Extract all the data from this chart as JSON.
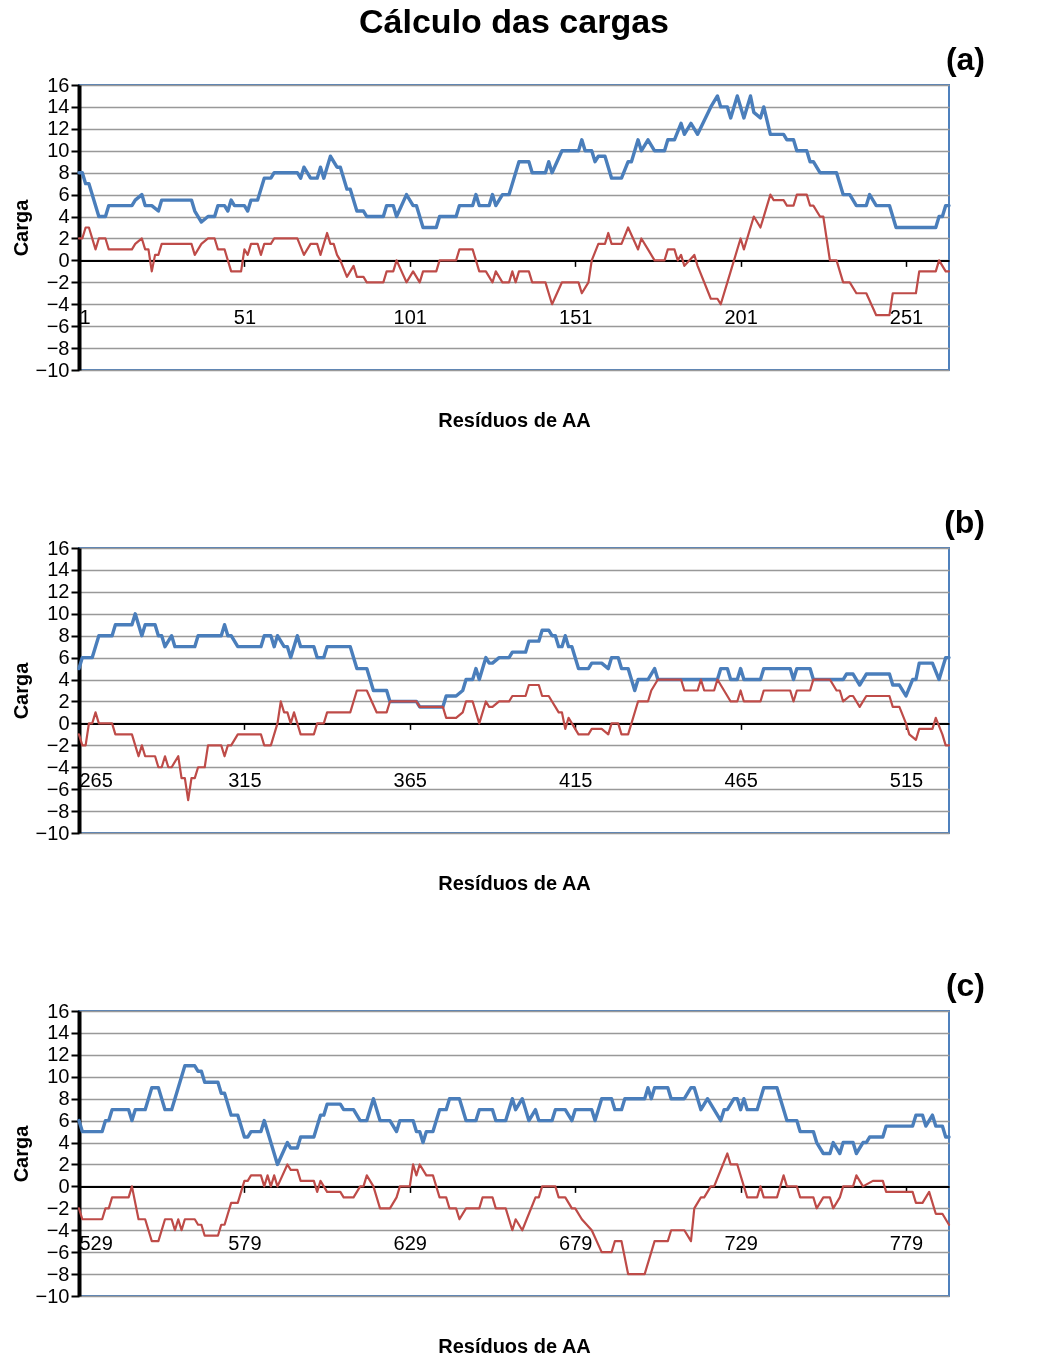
{
  "chart_data": [
    {
      "type": "line",
      "title": "Cálculo das cargas",
      "xlabel": "Resíduos de AA",
      "ylabel": "Carga",
      "annotations": [
        "(a)"
      ],
      "xlim": [
        1,
        264
      ],
      "xticks": [
        1,
        51,
        101,
        151,
        201,
        251
      ],
      "ylim": [
        -10,
        16
      ],
      "yticks": [
        -10,
        -8,
        -6,
        -4,
        -2,
        0,
        2,
        4,
        6,
        8,
        10,
        12,
        14,
        16
      ],
      "grid": "y",
      "series": [
        {
          "color": "#4a7ebb",
          "x": [
            1,
            2,
            3,
            4,
            7,
            9,
            10,
            17,
            18,
            20,
            21,
            23,
            25,
            26,
            35,
            36,
            38,
            40,
            42,
            43,
            45,
            46,
            47,
            48,
            51,
            52,
            53,
            55,
            57,
            59,
            60,
            67,
            68,
            69,
            71,
            73,
            74,
            75,
            77,
            79,
            80,
            82,
            83,
            85,
            87,
            88,
            93,
            94,
            96,
            97,
            100,
            102,
            103,
            105,
            109,
            110,
            115,
            116,
            120,
            121,
            122,
            125,
            126,
            127,
            129,
            131,
            134,
            137,
            138,
            142,
            143,
            144,
            147,
            152,
            153,
            154,
            156,
            157,
            158,
            160,
            162,
            165,
            167,
            168,
            170,
            171,
            173,
            175,
            178,
            179,
            181,
            183,
            184,
            186,
            188,
            192,
            194,
            195,
            197,
            198,
            200,
            202,
            204,
            205,
            207,
            208,
            210,
            214,
            215,
            217,
            218,
            221,
            222,
            223,
            225,
            230,
            232,
            234,
            236,
            239,
            240,
            242,
            246,
            248,
            260,
            261,
            262,
            263,
            264
          ],
          "values": [
            8,
            8,
            7,
            7,
            4,
            4,
            5,
            5,
            5.5,
            6,
            5,
            5,
            4.5,
            5.5,
            5.5,
            4.5,
            3.5,
            4,
            4,
            5,
            5,
            4.5,
            5.5,
            5,
            5,
            4.5,
            5.5,
            5.5,
            7.5,
            7.5,
            8,
            8,
            7.5,
            8.5,
            7.5,
            7.5,
            8.5,
            7.5,
            9.5,
            8.5,
            8.5,
            6.5,
            6.5,
            4.5,
            4.5,
            4,
            4,
            5,
            5,
            4,
            6,
            5,
            5,
            3,
            3,
            4,
            4,
            5,
            5,
            6,
            5,
            5,
            6,
            5,
            6,
            6,
            9,
            9,
            8,
            8,
            9,
            8,
            10,
            10,
            11,
            10,
            10,
            9,
            9.5,
            9.5,
            7.5,
            7.5,
            9,
            9,
            11,
            10,
            11,
            10,
            10,
            11,
            11,
            12.5,
            11.5,
            12.5,
            11.5,
            14,
            15,
            14,
            14,
            13,
            15,
            13,
            15,
            13.5,
            13,
            14,
            11.5,
            11.5,
            11,
            11,
            10,
            10,
            9,
            9,
            8,
            8,
            6,
            6,
            5,
            5,
            6,
            5,
            5,
            3,
            3,
            4,
            4,
            5,
            5
          ]
        },
        {
          "color": "#be4b48",
          "x": [
            1,
            2,
            3,
            4,
            6,
            7,
            9,
            10,
            17,
            18,
            20,
            21,
            22,
            23,
            24,
            25,
            26,
            35,
            36,
            38,
            40,
            42,
            43,
            45,
            47,
            50,
            51,
            52,
            53,
            55,
            56,
            57,
            59,
            60,
            67,
            69,
            71,
            73,
            74,
            76,
            77,
            78,
            79,
            80,
            82,
            84,
            85,
            87,
            88,
            93,
            94,
            96,
            97,
            100,
            102,
            104,
            105,
            109,
            110,
            115,
            116,
            120,
            122,
            124,
            126,
            127,
            129,
            131,
            132,
            133,
            134,
            137,
            138,
            142,
            144,
            147,
            152,
            153,
            155,
            156,
            158,
            160,
            161,
            162,
            165,
            167,
            170,
            171,
            173,
            175,
            178,
            179,
            181,
            182,
            183,
            184,
            187,
            188,
            192,
            194,
            195,
            197,
            201,
            202,
            205,
            207,
            210,
            211,
            214,
            215,
            217,
            218,
            221,
            222,
            223,
            225,
            226,
            228,
            230,
            232,
            234,
            236,
            239,
            242,
            246,
            247,
            250,
            254,
            255,
            260,
            261,
            263,
            264
          ],
          "values": [
            2,
            2,
            3,
            3,
            1,
            2,
            2,
            1,
            1,
            1.5,
            2,
            1,
            1,
            -1,
            0.5,
            0.5,
            1.5,
            1.5,
            0.5,
            1.5,
            2,
            2,
            1,
            1,
            -1,
            -1,
            1,
            0.5,
            1.5,
            1.5,
            0.5,
            1.5,
            1.5,
            2,
            2,
            0.5,
            1.5,
            1.5,
            0.5,
            2.5,
            1.5,
            1.5,
            0.5,
            0,
            -1.5,
            -0.5,
            -1.5,
            -1.5,
            -2,
            -2,
            -1,
            -1,
            0,
            -2,
            -1,
            -2,
            -1,
            -1,
            0,
            0,
            1,
            1,
            -1,
            -1,
            -2,
            -1,
            -2,
            -2,
            -1,
            -2,
            -1,
            -1,
            -2,
            -2,
            -4,
            -2,
            -2,
            -3,
            -2,
            0,
            1.5,
            1.5,
            2.5,
            1.5,
            1.5,
            3,
            1,
            2,
            1,
            0,
            0,
            1,
            1,
            0,
            0.5,
            -0.5,
            0.5,
            -0.5,
            -3.5,
            -3.5,
            -4,
            -2,
            2,
            1,
            4,
            3,
            6,
            5.5,
            5.5,
            5,
            5,
            6,
            6,
            5,
            5,
            4,
            4,
            0,
            0,
            -2,
            -2,
            -3,
            -3,
            -5,
            -5,
            -3,
            -3,
            -3,
            -1,
            -1,
            0,
            -1,
            -1
          ]
        }
      ]
    },
    {
      "type": "line",
      "xlabel": "Resíduos de AA",
      "ylabel": "Carga",
      "annotations": [
        "(b)"
      ],
      "xlim": [
        265,
        528
      ],
      "xticks": [
        265,
        315,
        365,
        415,
        465,
        515
      ],
      "ylim": [
        -10,
        16
      ],
      "yticks": [
        -10,
        -8,
        -6,
        -4,
        -2,
        0,
        2,
        4,
        6,
        8,
        10,
        12,
        14,
        16
      ],
      "grid": "y",
      "series": [
        {
          "color": "#4a7ebb",
          "x": [
            265,
            266,
            269,
            271,
            275,
            276,
            281,
            282,
            284,
            285,
            288,
            289,
            290,
            291,
            293,
            294,
            300,
            301,
            308,
            309,
            310,
            311,
            313,
            320,
            321,
            323,
            324,
            325,
            327,
            328,
            329,
            331,
            332,
            336,
            337,
            339,
            340,
            347,
            349,
            352,
            354,
            358,
            359,
            361,
            367,
            368,
            375,
            376,
            379,
            381,
            382,
            384,
            385,
            386,
            388,
            389,
            390,
            392,
            395,
            396,
            400,
            401,
            404,
            405,
            407,
            408,
            409,
            410,
            411,
            412,
            413,
            414,
            416,
            419,
            420,
            423,
            425,
            426,
            428,
            429,
            431,
            433,
            434,
            437,
            439,
            440,
            458,
            459,
            461,
            462,
            464,
            465,
            466,
            471,
            472,
            480,
            481,
            482,
            486,
            487,
            496,
            497,
            499,
            501,
            503,
            510,
            511,
            513,
            515,
            517,
            518,
            519,
            523,
            525,
            527,
            528
          ],
          "values": [
            5,
            6,
            6,
            8,
            8,
            9,
            9,
            10,
            8,
            9,
            9,
            8,
            8,
            7,
            8,
            7,
            7,
            8,
            8,
            9,
            8,
            8,
            7,
            7,
            8,
            8,
            7,
            8,
            7,
            7,
            6,
            8,
            7,
            7,
            6,
            6,
            7,
            7,
            5,
            5,
            3,
            3,
            2,
            2,
            2,
            1.5,
            1.5,
            2.5,
            2.5,
            3,
            4,
            4,
            5,
            4,
            6,
            5.5,
            5.5,
            6,
            6,
            6.5,
            6.5,
            7.5,
            7.5,
            8.5,
            8.5,
            8,
            8,
            7,
            7,
            8,
            7,
            7,
            5,
            5,
            5.5,
            5.5,
            5,
            6,
            6,
            5,
            5,
            3,
            4,
            4,
            5,
            4,
            4,
            5,
            5,
            4,
            4,
            5,
            4,
            4,
            5,
            5,
            4,
            5,
            5,
            4,
            4,
            4.5,
            4.5,
            3.5,
            4.5,
            4.5,
            3.5,
            3.5,
            2.5,
            4,
            4,
            5.5,
            5.5,
            4,
            6,
            6
          ]
        },
        {
          "color": "#be4b48",
          "x": [
            265,
            266,
            267,
            268,
            269,
            270,
            271,
            275,
            276,
            281,
            283,
            284,
            285,
            288,
            289,
            290,
            291,
            292,
            293,
            295,
            296,
            297,
            298,
            299,
            300,
            301,
            303,
            304,
            308,
            309,
            310,
            311,
            313,
            320,
            321,
            323,
            325,
            326,
            327,
            328,
            329,
            330,
            332,
            336,
            337,
            339,
            340,
            347,
            349,
            352,
            355,
            358,
            359,
            361,
            367,
            368,
            375,
            376,
            379,
            381,
            382,
            384,
            386,
            388,
            389,
            390,
            392,
            395,
            396,
            400,
            401,
            404,
            405,
            407,
            408,
            409,
            410,
            411,
            412,
            413,
            415,
            416,
            419,
            420,
            423,
            425,
            426,
            428,
            429,
            431,
            434,
            437,
            438,
            440,
            447,
            448,
            452,
            453,
            454,
            457,
            458,
            460,
            462,
            464,
            465,
            466,
            471,
            472,
            480,
            481,
            482,
            486,
            487,
            492,
            494,
            495,
            496,
            498,
            499,
            501,
            503,
            510,
            511,
            513,
            515,
            516,
            518,
            519,
            523,
            524,
            526,
            527,
            528
          ],
          "values": [
            -1,
            -2,
            -2,
            0,
            0,
            1,
            0,
            0,
            -1,
            -1,
            -3,
            -2,
            -3,
            -3,
            -4,
            -4,
            -3,
            -4,
            -4,
            -3,
            -5,
            -5,
            -7,
            -5,
            -5,
            -4,
            -4,
            -2,
            -2,
            -3,
            -2,
            -2,
            -1,
            -1,
            -2,
            -2,
            0,
            2,
            1,
            1,
            0,
            1,
            -1,
            -1,
            0,
            0,
            1,
            1,
            3,
            3,
            1,
            1,
            2,
            2,
            2,
            1.5,
            1.5,
            0.5,
            0.5,
            1,
            2,
            2,
            0,
            2,
            1.5,
            1.5,
            2,
            2,
            2.5,
            2.5,
            3.5,
            3.5,
            2.5,
            2.5,
            2,
            1.5,
            1,
            1,
            -0.5,
            0.5,
            -0.5,
            -1,
            -1,
            -0.5,
            -0.5,
            -1,
            0,
            0,
            -1,
            -1,
            2,
            2,
            3,
            4,
            4,
            3,
            3,
            4,
            3,
            3,
            4,
            3,
            2,
            2,
            3,
            2,
            2,
            3,
            3,
            2,
            3,
            3,
            4,
            4,
            3,
            3,
            2,
            2.5,
            2.5,
            1.5,
            2.5,
            2.5,
            1.5,
            1.5,
            0,
            -1,
            -1.5,
            -0.5,
            -0.5,
            0.5,
            -1,
            -2,
            -2
          ]
        }
      ]
    },
    {
      "type": "line",
      "xlabel": "Resíduos de AA",
      "ylabel": "Carga",
      "annotations": [
        "(c)"
      ],
      "xlim": [
        529,
        792
      ],
      "xticks": [
        529,
        579,
        629,
        679,
        729,
        779
      ],
      "ylim": [
        -10,
        16
      ],
      "yticks": [
        -10,
        -8,
        -6,
        -4,
        -2,
        0,
        2,
        4,
        6,
        8,
        10,
        12,
        14,
        16
      ],
      "grid": "y",
      "series": [
        {
          "color": "#4a7ebb",
          "x": [
            529,
            530,
            536,
            537,
            538,
            539,
            544,
            545,
            546,
            549,
            551,
            553,
            555,
            557,
            561,
            564,
            565,
            566,
            567,
            571,
            572,
            573,
            575,
            577,
            579,
            580,
            581,
            584,
            585,
            589,
            592,
            593,
            595,
            596,
            600,
            602,
            603,
            604,
            608,
            609,
            612,
            614,
            616,
            618,
            620,
            623,
            625,
            626,
            630,
            631,
            632,
            633,
            634,
            636,
            638,
            640,
            641,
            644,
            646,
            649,
            650,
            654,
            655,
            658,
            660,
            661,
            663,
            665,
            667,
            668,
            672,
            673,
            676,
            678,
            679,
            684,
            685,
            687,
            690,
            691,
            693,
            694,
            700,
            701,
            702,
            703,
            707,
            708,
            712,
            714,
            715,
            717,
            719,
            721,
            723,
            724,
            725,
            727,
            728,
            729,
            730,
            731,
            734,
            736,
            740,
            743,
            746,
            747,
            751,
            752,
            754,
            756,
            757,
            759,
            760,
            763,
            764,
            766,
            767,
            768,
            772,
            773,
            781,
            782,
            784,
            785,
            787,
            788,
            790,
            791,
            792
          ],
          "values": [
            6,
            5,
            5,
            6,
            6,
            7,
            7,
            6,
            7,
            7,
            9,
            9,
            7,
            7,
            11,
            11,
            10.5,
            10.5,
            9.5,
            9.5,
            8.5,
            8.5,
            6.5,
            6.5,
            4.5,
            4.5,
            5,
            5,
            6,
            2,
            4,
            3.5,
            3.5,
            4.5,
            4.5,
            6.5,
            6.5,
            7.5,
            7.5,
            7,
            7,
            6,
            6,
            8,
            6,
            6,
            5,
            6,
            6,
            5,
            5,
            4,
            5,
            5,
            7,
            7,
            8,
            8,
            6,
            6,
            7,
            7,
            6,
            6,
            8,
            7,
            8,
            6,
            7,
            6,
            6,
            7,
            7,
            6,
            7,
            7,
            6,
            8,
            8,
            7,
            7,
            8,
            8,
            9,
            8,
            9,
            9,
            8,
            8,
            9,
            9,
            7,
            8,
            7,
            6,
            7,
            7,
            8,
            8,
            7,
            8,
            7,
            7,
            9,
            9,
            6,
            6,
            5,
            5,
            4,
            3,
            3,
            4,
            3,
            4,
            4,
            3,
            4,
            4,
            4.5,
            4.5,
            5.5,
            5.5,
            6.5,
            6.5,
            5.5,
            6.5,
            5.5,
            5.5,
            4.5,
            4.5
          ]
        },
        {
          "color": "#be4b48",
          "x": [
            529,
            530,
            536,
            537,
            538,
            539,
            544,
            545,
            547,
            549,
            551,
            553,
            555,
            557,
            558,
            559,
            560,
            561,
            564,
            565,
            566,
            567,
            571,
            572,
            573,
            575,
            577,
            579,
            580,
            581,
            584,
            585,
            586,
            587,
            588,
            589,
            592,
            593,
            595,
            596,
            600,
            601,
            602,
            604,
            608,
            609,
            612,
            614,
            615,
            616,
            618,
            620,
            623,
            625,
            626,
            629,
            630,
            631,
            632,
            634,
            636,
            638,
            640,
            641,
            643,
            644,
            646,
            650,
            651,
            654,
            655,
            658,
            660,
            661,
            663,
            667,
            668,
            669,
            673,
            674,
            676,
            678,
            679,
            681,
            684,
            687,
            690,
            691,
            693,
            695,
            700,
            703,
            707,
            708,
            712,
            714,
            715,
            717,
            718,
            720,
            721,
            725,
            726,
            728,
            731,
            734,
            735,
            736,
            740,
            742,
            743,
            746,
            747,
            751,
            752,
            754,
            756,
            757,
            759,
            760,
            763,
            764,
            766,
            769,
            772,
            773,
            781,
            782,
            784,
            786,
            788,
            790,
            792
          ],
          "values": [
            -2,
            -3,
            -3,
            -2,
            -2,
            -1,
            -1,
            0,
            -3,
            -3,
            -5,
            -5,
            -3,
            -3,
            -4,
            -3,
            -4,
            -3,
            -3,
            -3.5,
            -3.5,
            -4.5,
            -4.5,
            -3.5,
            -3.5,
            -1.5,
            -1.5,
            0.5,
            0.5,
            1,
            1,
            0,
            1,
            0,
            1,
            0,
            2,
            1.5,
            1.5,
            0.5,
            0.5,
            -0.5,
            0.5,
            -0.5,
            -0.5,
            -1,
            -1,
            0,
            0,
            1,
            0,
            -2,
            -2,
            -1,
            0,
            0,
            2,
            1,
            2,
            1,
            1,
            -1,
            -1,
            -2,
            -2,
            -3,
            -2,
            -2,
            -1,
            -1,
            -2,
            -2,
            -4,
            -3,
            -4,
            -1,
            -1,
            0,
            0,
            -1,
            -1,
            -2,
            -2,
            -3,
            -4,
            -6,
            -6,
            -5,
            -5,
            -8,
            -8,
            -5,
            -5,
            -4,
            -4,
            -5,
            -2,
            -1,
            -1,
            0,
            0,
            3,
            2,
            2,
            -1,
            -1,
            0,
            -1,
            -1,
            1,
            0,
            0,
            -1,
            -1,
            -2,
            -1,
            -1,
            -2,
            -1,
            0,
            0,
            1,
            0,
            0.5,
            0.5,
            -0.5,
            -0.5,
            -1.5,
            -1.5,
            -0.5,
            -2.5,
            -2.5,
            -3.5
          ]
        }
      ]
    }
  ]
}
